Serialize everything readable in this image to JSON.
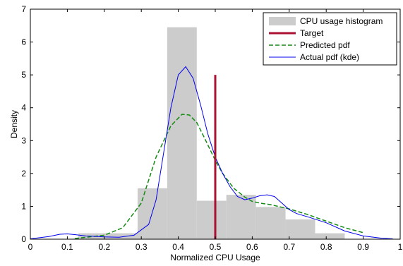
{
  "chart_data": {
    "type": "bar",
    "title": "",
    "xlabel": "Normalized CPU Usage",
    "ylabel": "Density",
    "xlim": [
      0,
      1
    ],
    "ylim": [
      0,
      7
    ],
    "xticks": [
      0,
      0.1,
      0.2,
      0.3,
      0.4,
      0.5,
      0.6,
      0.7,
      0.8,
      0.9,
      1
    ],
    "xtick_labels": [
      "0",
      "0.1",
      "0.2",
      "0.3",
      "0.4",
      "0.5",
      "0.6",
      "0.7",
      "0.8",
      "0.9",
      "1"
    ],
    "yticks": [
      0,
      1,
      2,
      3,
      4,
      5,
      6,
      7
    ],
    "ytick_labels": [
      "0",
      "1",
      "2",
      "3",
      "4",
      "5",
      "6",
      "7"
    ],
    "legend_position": "top-right",
    "grid": false,
    "histogram": {
      "name": "CPU usage histogram",
      "color": "#cccccc",
      "bin_width": 0.08,
      "centers": [
        0.17,
        0.25,
        0.33,
        0.41,
        0.49,
        0.57,
        0.65,
        0.73,
        0.81
      ],
      "values": [
        0.18,
        0.18,
        1.55,
        6.45,
        1.17,
        1.35,
        0.98,
        0.6,
        0.18
      ]
    },
    "target": {
      "name": "Target",
      "color": "#aa1133",
      "x": 0.5,
      "y_range": [
        0,
        5
      ]
    },
    "series": [
      {
        "name": "Predicted pdf",
        "color": "#138a13",
        "style": "dashed",
        "x": [
          0.12,
          0.2,
          0.25,
          0.3,
          0.34,
          0.38,
          0.41,
          0.43,
          0.45,
          0.47,
          0.5,
          0.52,
          0.55,
          0.58,
          0.6,
          0.62,
          0.65,
          0.7,
          0.75,
          0.8,
          0.85,
          0.9
        ],
        "y": [
          0.02,
          0.12,
          0.35,
          1.1,
          2.5,
          3.45,
          3.8,
          3.78,
          3.55,
          3.1,
          2.4,
          2.0,
          1.55,
          1.28,
          1.15,
          1.1,
          1.05,
          0.92,
          0.75,
          0.55,
          0.35,
          0.2
        ]
      },
      {
        "name": "Actual pdf (kde)",
        "color": "#0000ee",
        "style": "solid",
        "x": [
          0.0,
          0.05,
          0.08,
          0.1,
          0.12,
          0.15,
          0.2,
          0.24,
          0.28,
          0.32,
          0.34,
          0.36,
          0.38,
          0.4,
          0.42,
          0.44,
          0.46,
          0.48,
          0.5,
          0.52,
          0.54,
          0.56,
          0.58,
          0.6,
          0.62,
          0.64,
          0.66,
          0.68,
          0.7,
          0.72,
          0.75,
          0.8,
          0.85,
          0.9,
          0.95,
          0.98
        ],
        "y": [
          0.01,
          0.08,
          0.15,
          0.16,
          0.14,
          0.1,
          0.07,
          0.06,
          0.12,
          0.45,
          1.2,
          2.6,
          4.0,
          5.0,
          5.25,
          4.9,
          4.1,
          3.2,
          2.5,
          2.0,
          1.6,
          1.3,
          1.2,
          1.25,
          1.32,
          1.35,
          1.3,
          1.1,
          0.9,
          0.78,
          0.68,
          0.5,
          0.25,
          0.1,
          0.03,
          0.01
        ]
      }
    ]
  }
}
